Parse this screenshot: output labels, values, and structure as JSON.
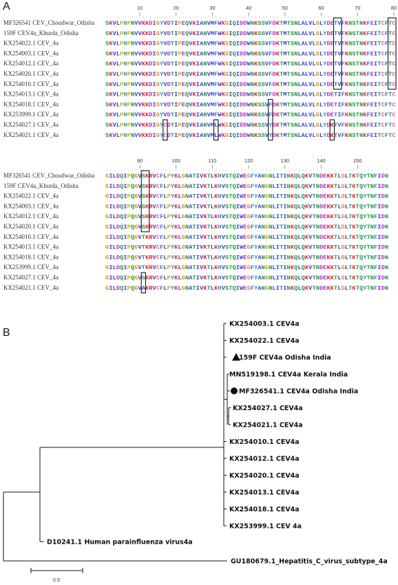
{
  "panel_a": {
    "label": "A",
    "names": [
      "MF326541 CEV_Choudwar_Odisha",
      "159F CEV4a_Khurda_Odisha",
      "KX254022.1 CEV_4a",
      "KX254003.1 CEV_4a",
      "KX254012.1 CEV_4a",
      "KX254020.1 CEV_4a",
      "KX254010.1 CEV_4a",
      "KX254013.1 CEV_4a",
      "KX254018.1 CEV_4a",
      "KX253999.1 CEV_4a",
      "KX254027.1 CEV_4a",
      "KX254021.1 CEV_4a"
    ],
    "blocks": [
      {
        "ruler": [
          10,
          20,
          30,
          40,
          50,
          60,
          70,
          80
        ],
        "seqs": [
          "SKVLPHPNVVKKDIGYVDTIPEQVKIANVMFWKGIQIDDWNKSSVFDKTMTSNLALVLGLYDETVFKNSTNKFEITCFTC",
          "SKVLPHPNVVKKDIGYVDTIPEQVKIANVMFWKGIQIDDWNKSSVFDKTMTSNLALVLGLYDETVFKNSTNKFEITCFTC",
          "SKVLPHPNVVKKDIGYVDTIPEQVKIANVMFWKGIQIDDWNKSSVFDKTMTSNLALVLGLYDETVFKNSTNKFEITCFTC",
          "SKVLPHPNVVKKDIGYVDTIPEQVKIANVMFWKGIQIDDWNKSSVFDKTMTSNLALVLGLYDETVFKNSTNKFEITCFTC",
          "SKVLPHPNVVKKDIGYVDTIPEQVKIANVMFWKGIQIDDWNKSSVFDKTMTSNLALVLGLYDETVFKNSTNKFEITCFTC",
          "SKVLPHPNVVKKDIGYVDTIPEQVKIANVMFWKGIQIDDWNKSSVFDKTMTSNLALVLGLYDETVFKNSTNKFEITCFTC",
          "SKVLPHPNVVKKDIGYVDTIPEQVKIANVMFWKGIQIDDWNKSSVFDKTMTSNLALVLGLYDETVFKNSTNKFEITCFTC",
          "SKVLPHPNVVKKDIGYVDTIPEQVKIANVMFWKGIQIDDWNKSSVFDKTMTSNLALVLGLYDETIFKNSTNKFEITCFTC",
          "SKVLPHPNVVKKDIGYVDTIPEQVKIANVMFWKGIQIDDWNKSSVFDKTMTSNLALVLGLYDETIFKNSTNKFEITCFTC",
          "SKVLPHPNVVKKDIGYVDTIPEQVKIANVMFWKGIQIDDWNKSSVFDKTMTSNLALVLGLYDETIFKNSTNKFEITCFTC",
          "SKVLPHPNVVKKDIGYCDTIPEQVKIANVMLWKGIQIDDWNKSSVYDKTMTSNLALVLGLYDKTVFKNSTNKFEITCFTC",
          "SKVLPHPNVVKKDIGYCDTIPEQVKIANVMLWKGIQIDDWNKSSVYDKTMTSNLALVLGLYDKTVFKNSTNKFEITCFTC"
        ]
      },
      {
        "ruler": [
          90,
          100,
          110,
          120,
          130,
          140,
          150
        ],
        "seqs": [
          "GILDQIPQGVSKRVCFLPYKLGNATIVKTLKHVSTQIWEGFYANGNLITINKQLQKVTNDEKKTLGLTKTQYTNFIDN",
          "GILDQIPQGVSKRVCFLPYKLGNATIVKTLKHVSTQIWEGFYANGNLITINKQLQKVTNDEKKTLGLTKTQYTNFIDN",
          "GILDQIPQGVSKRVCFLPYKLGNATIVKTLKHVSTQIWEGFYANGNLITINKQLQKVTNDEKKTLGLTKTQYTNFIDN",
          "GILDQIPQGVSKRVCFLPYKLGNATIVKTLKHVSTQIWEGFYANGNLITINKQLQKVTNDEKKTLGLTKTQYTNFIDN",
          "GILDQIPQGVSKRVCFLPYKLGNATIVKTLKHVSTQIWEGFYANGNLITINKQLQKVTNDEKKTLGLTKTQYTNFIDN",
          "GILDQIPQGVSKRVCFLPYKLGNATIVKTLKHVSTQIWEGFYANGNLITINKQLQKVTNDEKKTLGLTKTQYTNFIDN",
          "GILDQIPQGVTKRVCFLPYKLGNATIVKTLKHVSTQIWEGFYANGNLITINKQLQKVTNDEKKTLGLTKTQYTNFIDN",
          "GILDQIPQGVTKRVCFLPYKLGNATIVKTLKHVSTQIWEGFYANGNLITINKQLQKVTNDEKKTLGLTKTQYTNFIDN",
          "GILDQIPQGVTKRVCFLPYKLGNATIVKTLKHVSTQIWEGFYANGNLITINKQLQKVTNDEKKTLGLTKTQYTNFIDN",
          "GILDQIPQGVTKRVCFLPYKLGNATIVKTLKHVSTQIWEGFYANGNLITINKQLQKVTNDEKKTLGLTKTQYTNFIDN",
          "GILDQIPQGVSKRVCFLPYKLGNATIVKTLKHVSTQIWEGFYANGNLITINKQLQKVTNDEKKTLGLTKTQYTNFIDN",
          "GILDQIPQGVAKRVCFLPYKLGNATIVKTLKHVSTQIWEGFYANGNLITINKQLQKVTNDEKKTLGLTKTQYTNFIDN"
        ]
      }
    ]
  },
  "panel_b": {
    "label": "B",
    "clade": [
      "KX254003.1 CEV4a",
      "KX254022.1 CEV4a",
      "159F CEV4a Odisha India",
      "MN519198.1 CEV4a Kerala India",
      "MF326541.1 CEV4a Odisha India",
      "KX254027.1 CEV4a",
      "KX254021.1 CEV4a",
      "KX254010.1 CEV4a",
      "KX254012.1 CEV4a",
      "KX254020.1 CEV4a",
      "KX254013.1 CEV4a",
      "KX254018.1 CEV4a",
      "KX253999.1 CEV 4a"
    ],
    "sister": "D10241.1 Human parainfluenza virus4a",
    "outgroup": "GU180679.1_Hepatitis_C_virus_subtype_4a",
    "scale": "0.5"
  }
}
